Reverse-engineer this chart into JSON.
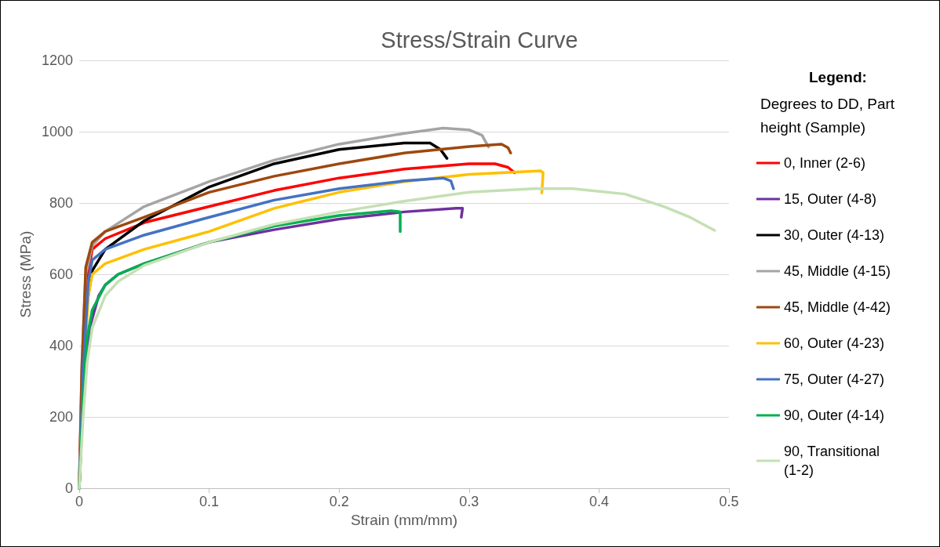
{
  "chart_data": {
    "type": "line",
    "title": "Stress/Strain Curve",
    "xlabel": "Strain (mm/mm)",
    "ylabel": "Stress (MPa)",
    "legend_title": "Legend:",
    "annotations": [
      "Degrees to DD, Part height (Sample)"
    ],
    "xlim": [
      0,
      0.5
    ],
    "xticks": [
      0,
      0.1,
      0.2,
      0.3,
      0.4,
      0.5
    ],
    "ylim": [
      0,
      1200
    ],
    "yticks": [
      0,
      200,
      400,
      600,
      800,
      1000,
      1200
    ],
    "grid": "y",
    "legend": "right",
    "marker": "none",
    "line_style": "solid",
    "series": [
      {
        "name": "0, Inner (2-6)",
        "color": "#ff0000",
        "x": [
          0,
          0.002,
          0.005,
          0.01,
          0.02,
          0.05,
          0.1,
          0.15,
          0.2,
          0.25,
          0.3,
          0.32,
          0.33,
          0.335
        ],
        "values": [
          0,
          300,
          560,
          670,
          700,
          745,
          790,
          835,
          870,
          895,
          910,
          910,
          900,
          885
        ]
      },
      {
        "name": "15, Outer (4-8)",
        "color": "#7030a0",
        "x": [
          0,
          0.003,
          0.008,
          0.015,
          0.02,
          0.03,
          0.05,
          0.1,
          0.15,
          0.2,
          0.25,
          0.29,
          0.295,
          0.294
        ],
        "values": [
          0,
          250,
          450,
          540,
          570,
          600,
          630,
          690,
          725,
          755,
          775,
          785,
          785,
          760
        ]
      },
      {
        "name": "30, Outer (4-13)",
        "color": "#000000",
        "x": [
          0,
          0.003,
          0.006,
          0.01,
          0.02,
          0.05,
          0.1,
          0.15,
          0.2,
          0.25,
          0.27,
          0.278,
          0.283
        ],
        "values": [
          0,
          300,
          520,
          610,
          670,
          750,
          845,
          910,
          950,
          968,
          968,
          950,
          925
        ]
      },
      {
        "name": "45, Middle (4-15)",
        "color": "#a5a5a5",
        "x": [
          0,
          0.002,
          0.005,
          0.01,
          0.02,
          0.05,
          0.1,
          0.15,
          0.2,
          0.25,
          0.28,
          0.3,
          0.31,
          0.315
        ],
        "values": [
          0,
          350,
          600,
          680,
          720,
          790,
          860,
          920,
          965,
          995,
          1010,
          1005,
          990,
          957
        ]
      },
      {
        "name": "45, Middle (4-42)",
        "color": "#9e480e",
        "x": [
          0,
          0.002,
          0.005,
          0.01,
          0.02,
          0.05,
          0.1,
          0.15,
          0.2,
          0.25,
          0.3,
          0.325,
          0.33,
          0.332
        ],
        "values": [
          0,
          330,
          620,
          690,
          720,
          760,
          830,
          875,
          910,
          940,
          958,
          965,
          955,
          940
        ]
      },
      {
        "name": "60, Outer (4-23)",
        "color": "#ffc000",
        "x": [
          0,
          0.003,
          0.007,
          0.01,
          0.02,
          0.05,
          0.1,
          0.15,
          0.2,
          0.25,
          0.3,
          0.355,
          0.357,
          0.356
        ],
        "values": [
          0,
          300,
          540,
          600,
          630,
          670,
          720,
          785,
          830,
          860,
          880,
          890,
          885,
          828
        ]
      },
      {
        "name": "75, Outer (4-27)",
        "color": "#4472c4",
        "x": [
          0,
          0.003,
          0.007,
          0.01,
          0.02,
          0.05,
          0.1,
          0.15,
          0.2,
          0.25,
          0.28,
          0.286,
          0.288
        ],
        "values": [
          0,
          330,
          580,
          640,
          670,
          710,
          760,
          808,
          840,
          862,
          870,
          862,
          840
        ]
      },
      {
        "name": "90, Outer (4-14)",
        "color": "#00b050",
        "x": [
          0,
          0.003,
          0.006,
          0.01,
          0.02,
          0.03,
          0.05,
          0.1,
          0.15,
          0.2,
          0.24,
          0.247,
          0.247
        ],
        "values": [
          0,
          250,
          420,
          500,
          570,
          600,
          630,
          690,
          735,
          765,
          778,
          775,
          720
        ]
      },
      {
        "name": "90, Transitional (1-2)",
        "color": "#c5e0b4",
        "x": [
          0,
          0.003,
          0.006,
          0.01,
          0.02,
          0.03,
          0.05,
          0.1,
          0.15,
          0.2,
          0.25,
          0.3,
          0.35,
          0.38,
          0.42,
          0.45,
          0.47,
          0.489
        ],
        "values": [
          0,
          200,
          350,
          450,
          540,
          580,
          625,
          690,
          740,
          775,
          805,
          830,
          840,
          840,
          825,
          790,
          760,
          723
        ]
      }
    ]
  }
}
